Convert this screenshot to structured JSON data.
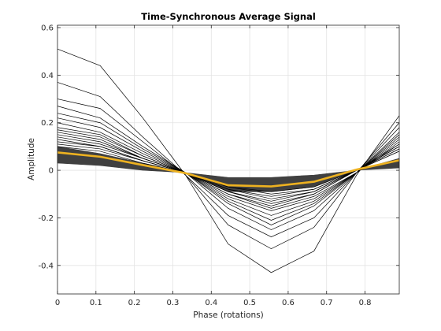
{
  "chart_data": {
    "type": "line",
    "title": "Time-Synchronous Average Signal",
    "xlabel": "Phase (rotations)",
    "ylabel": "Amplitude",
    "xlim": [
      0,
      0.889
    ],
    "ylim": [
      -0.52,
      0.61
    ],
    "xticks": [
      0,
      0.1,
      0.2,
      0.3,
      0.4,
      0.5,
      0.6,
      0.7,
      0.8
    ],
    "xtick_labels": [
      "0",
      "0.1",
      "0.2",
      "0.3",
      "0.4",
      "0.5",
      "0.6",
      "0.7",
      "0.8"
    ],
    "yticks": [
      -0.4,
      -0.2,
      0,
      0.2,
      0.4,
      0.6
    ],
    "ytick_labels": [
      "-0.4",
      "-0.2",
      "0",
      "0.2",
      "0.4",
      "0.6"
    ],
    "grid": true,
    "x": [
      0,
      0.111,
      0.222,
      0.333,
      0.444,
      0.556,
      0.667,
      0.778,
      0.889
    ],
    "series": [
      {
        "values": [
          0.51,
          0.44,
          0.22,
          -0.02,
          -0.31,
          -0.43,
          -0.34,
          -0.02,
          0.23
        ]
      },
      {
        "values": [
          0.37,
          0.31,
          0.14,
          -0.02,
          -0.23,
          -0.33,
          -0.24,
          -0.01,
          0.2
        ]
      },
      {
        "values": [
          0.3,
          0.26,
          0.12,
          -0.02,
          -0.19,
          -0.28,
          -0.2,
          -0.01,
          0.18
        ]
      },
      {
        "values": [
          0.27,
          0.22,
          0.1,
          -0.01,
          -0.16,
          -0.25,
          -0.17,
          -0.01,
          0.16
        ]
      },
      {
        "values": [
          0.24,
          0.2,
          0.09,
          -0.01,
          -0.14,
          -0.23,
          -0.15,
          -0.01,
          0.15
        ]
      },
      {
        "values": [
          0.22,
          0.18,
          0.08,
          -0.01,
          -0.13,
          -0.21,
          -0.14,
          -0.01,
          0.14
        ]
      },
      {
        "values": [
          0.2,
          0.16,
          0.07,
          -0.01,
          -0.12,
          -0.19,
          -0.13,
          -0.01,
          0.13
        ]
      },
      {
        "values": [
          0.18,
          0.15,
          0.06,
          -0.01,
          -0.11,
          -0.17,
          -0.12,
          -0.01,
          0.12
        ]
      },
      {
        "values": [
          0.17,
          0.14,
          0.06,
          -0.01,
          -0.1,
          -0.16,
          -0.11,
          -0.01,
          0.11
        ]
      },
      {
        "values": [
          0.16,
          0.13,
          0.05,
          -0.01,
          -0.1,
          -0.15,
          -0.1,
          0.0,
          0.11
        ]
      },
      {
        "values": [
          0.15,
          0.12,
          0.05,
          -0.01,
          -0.09,
          -0.14,
          -0.1,
          0.0,
          0.1
        ]
      },
      {
        "values": [
          0.14,
          0.11,
          0.05,
          -0.01,
          -0.09,
          -0.13,
          -0.09,
          0.0,
          0.1
        ]
      },
      {
        "values": [
          0.13,
          0.1,
          0.04,
          -0.01,
          -0.08,
          -0.12,
          -0.09,
          0.0,
          0.09
        ]
      },
      {
        "values": [
          0.12,
          0.1,
          0.04,
          -0.01,
          -0.08,
          -0.11,
          -0.08,
          0.0,
          0.09
        ]
      },
      {
        "values": [
          0.11,
          0.09,
          0.04,
          -0.01,
          -0.07,
          -0.1,
          -0.08,
          0.0,
          0.08
        ]
      },
      {
        "values": [
          0.1,
          0.08,
          0.03,
          -0.01,
          -0.07,
          -0.09,
          -0.07,
          0.0,
          0.08
        ]
      }
    ],
    "band": {
      "upper": [
        0.1,
        0.07,
        0.03,
        -0.01,
        -0.03,
        -0.03,
        -0.02,
        0.0,
        0.05
      ],
      "lower": [
        0.03,
        0.02,
        0.0,
        -0.01,
        -0.09,
        -0.09,
        -0.07,
        0.0,
        0.01
      ]
    },
    "average": {
      "values": [
        0.075,
        0.057,
        0.022,
        -0.012,
        -0.063,
        -0.068,
        -0.048,
        0.003,
        0.042
      ],
      "color": "#edb120"
    },
    "line_color": "#000000",
    "band_color": "#404040"
  }
}
